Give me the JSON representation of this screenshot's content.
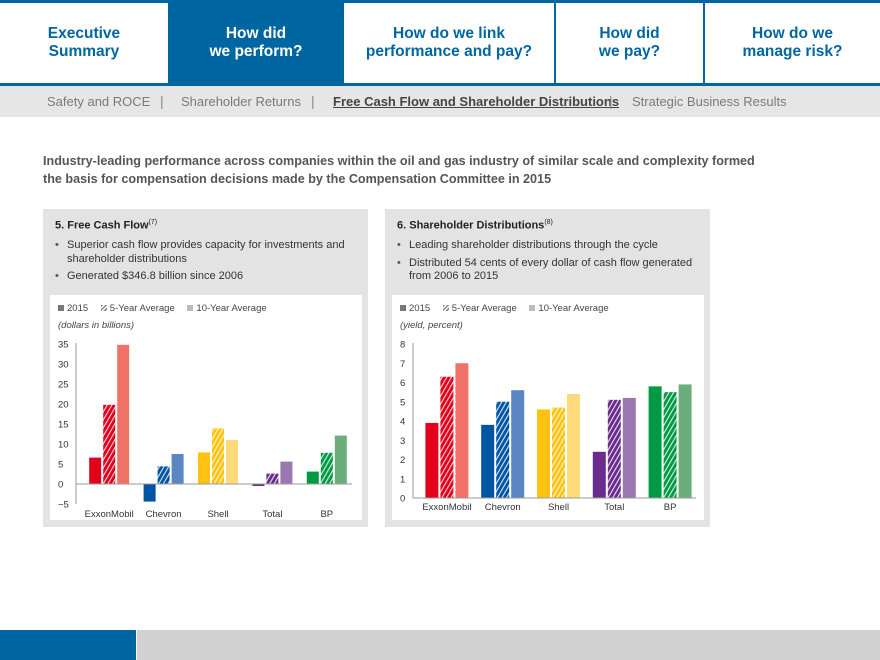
{
  "nav": {
    "tabs": [
      {
        "line1": "Executive",
        "line2": "Summary",
        "active": false
      },
      {
        "line1": "How did",
        "line2": "we perform?",
        "active": true
      },
      {
        "line1": "How do we link",
        "line2": "performance and pay?",
        "active": false
      },
      {
        "line1": "How did",
        "line2": "we pay?",
        "active": false
      },
      {
        "line1": "How do we",
        "line2": "manage risk?",
        "active": false
      }
    ]
  },
  "subnav": {
    "items": [
      "Safety and ROCE",
      "Shareholder Returns",
      "Free Cash Flow and Shareholder Distributions",
      "Strategic Business Results"
    ],
    "separator": "|",
    "active_index": 2
  },
  "intro": "Industry-leading performance across companies within the oil and gas industry of similar scale and complexity formed the basis for compensation decisions made by the Compensation Committee in 2015",
  "panels": [
    {
      "title": "5. Free Cash Flow",
      "footnote": "(7)",
      "bullets": [
        "Superior cash flow provides capacity for investments and shareholder distributions",
        "Generated $346.8 billion since 2006"
      ]
    },
    {
      "title": "6. Shareholder Distributions",
      "footnote": "(8)",
      "bullets": [
        "Leading shareholder distributions through the cycle",
        "Distributed 54 cents of every dollar of cash flow generated from 2006 to 2015"
      ]
    }
  ],
  "legend": [
    "2015",
    "5-Year Average",
    "10-Year Average"
  ],
  "company_colors": {
    "ExxonMobil": [
      "#e3001b",
      "#e3001b",
      "#f07267"
    ],
    "Chevron": [
      "#0054a4",
      "#0054a4",
      "#5a86c5"
    ],
    "Shell": [
      "#ffc20e",
      "#ffc20e",
      "#ffd97a"
    ],
    "Total": [
      "#6a2c8c",
      "#6a2c8c",
      "#9b77b0"
    ],
    "BP": [
      "#009a44",
      "#009a44",
      "#6bae7c"
    ]
  },
  "chart_data": [
    {
      "type": "bar",
      "title": "5. Free Cash Flow",
      "ylabel": "(dollars in billions)",
      "xlabel": "",
      "categories": [
        "ExxonMobil",
        "Chevron",
        "Shell",
        "Total",
        "BP"
      ],
      "series": [
        {
          "name": "2015",
          "values": [
            6.6,
            -4.4,
            7.9,
            -0.5,
            3.1
          ]
        },
        {
          "name": "5-Year Average",
          "values": [
            19.8,
            4.4,
            13.9,
            2.6,
            7.8
          ]
        },
        {
          "name": "10-Year Average",
          "values": [
            34.8,
            7.5,
            11.0,
            5.6,
            12.1
          ]
        }
      ],
      "ylim": [
        -5,
        35
      ],
      "yticks": [
        35,
        30,
        25,
        20,
        15,
        10,
        5,
        0,
        -5
      ],
      "ytick_labels": [
        "35",
        "30",
        "25",
        "20",
        "15",
        "10",
        "5",
        "0",
        "−5"
      ],
      "grid": false,
      "legend_position": "top-left"
    },
    {
      "type": "bar",
      "title": "6. Shareholder Distributions",
      "ylabel": "(yield, percent)",
      "xlabel": "",
      "categories": [
        "ExxonMobil",
        "Chevron",
        "Shell",
        "Total",
        "BP"
      ],
      "series": [
        {
          "name": "2015",
          "values": [
            3.9,
            3.8,
            4.6,
            2.4,
            5.8
          ]
        },
        {
          "name": "5-Year Average",
          "values": [
            6.3,
            5.0,
            4.7,
            5.1,
            5.5
          ]
        },
        {
          "name": "10-Year Average",
          "values": [
            7.0,
            5.6,
            5.4,
            5.2,
            5.9
          ]
        }
      ],
      "ylim": [
        0,
        8
      ],
      "yticks": [
        8,
        7,
        6,
        5,
        4,
        3,
        2,
        1,
        0
      ],
      "ytick_labels": [
        "8",
        "7",
        "6",
        "5",
        "4",
        "3",
        "2",
        "1",
        "0"
      ],
      "grid": false,
      "legend_position": "top-left"
    }
  ]
}
